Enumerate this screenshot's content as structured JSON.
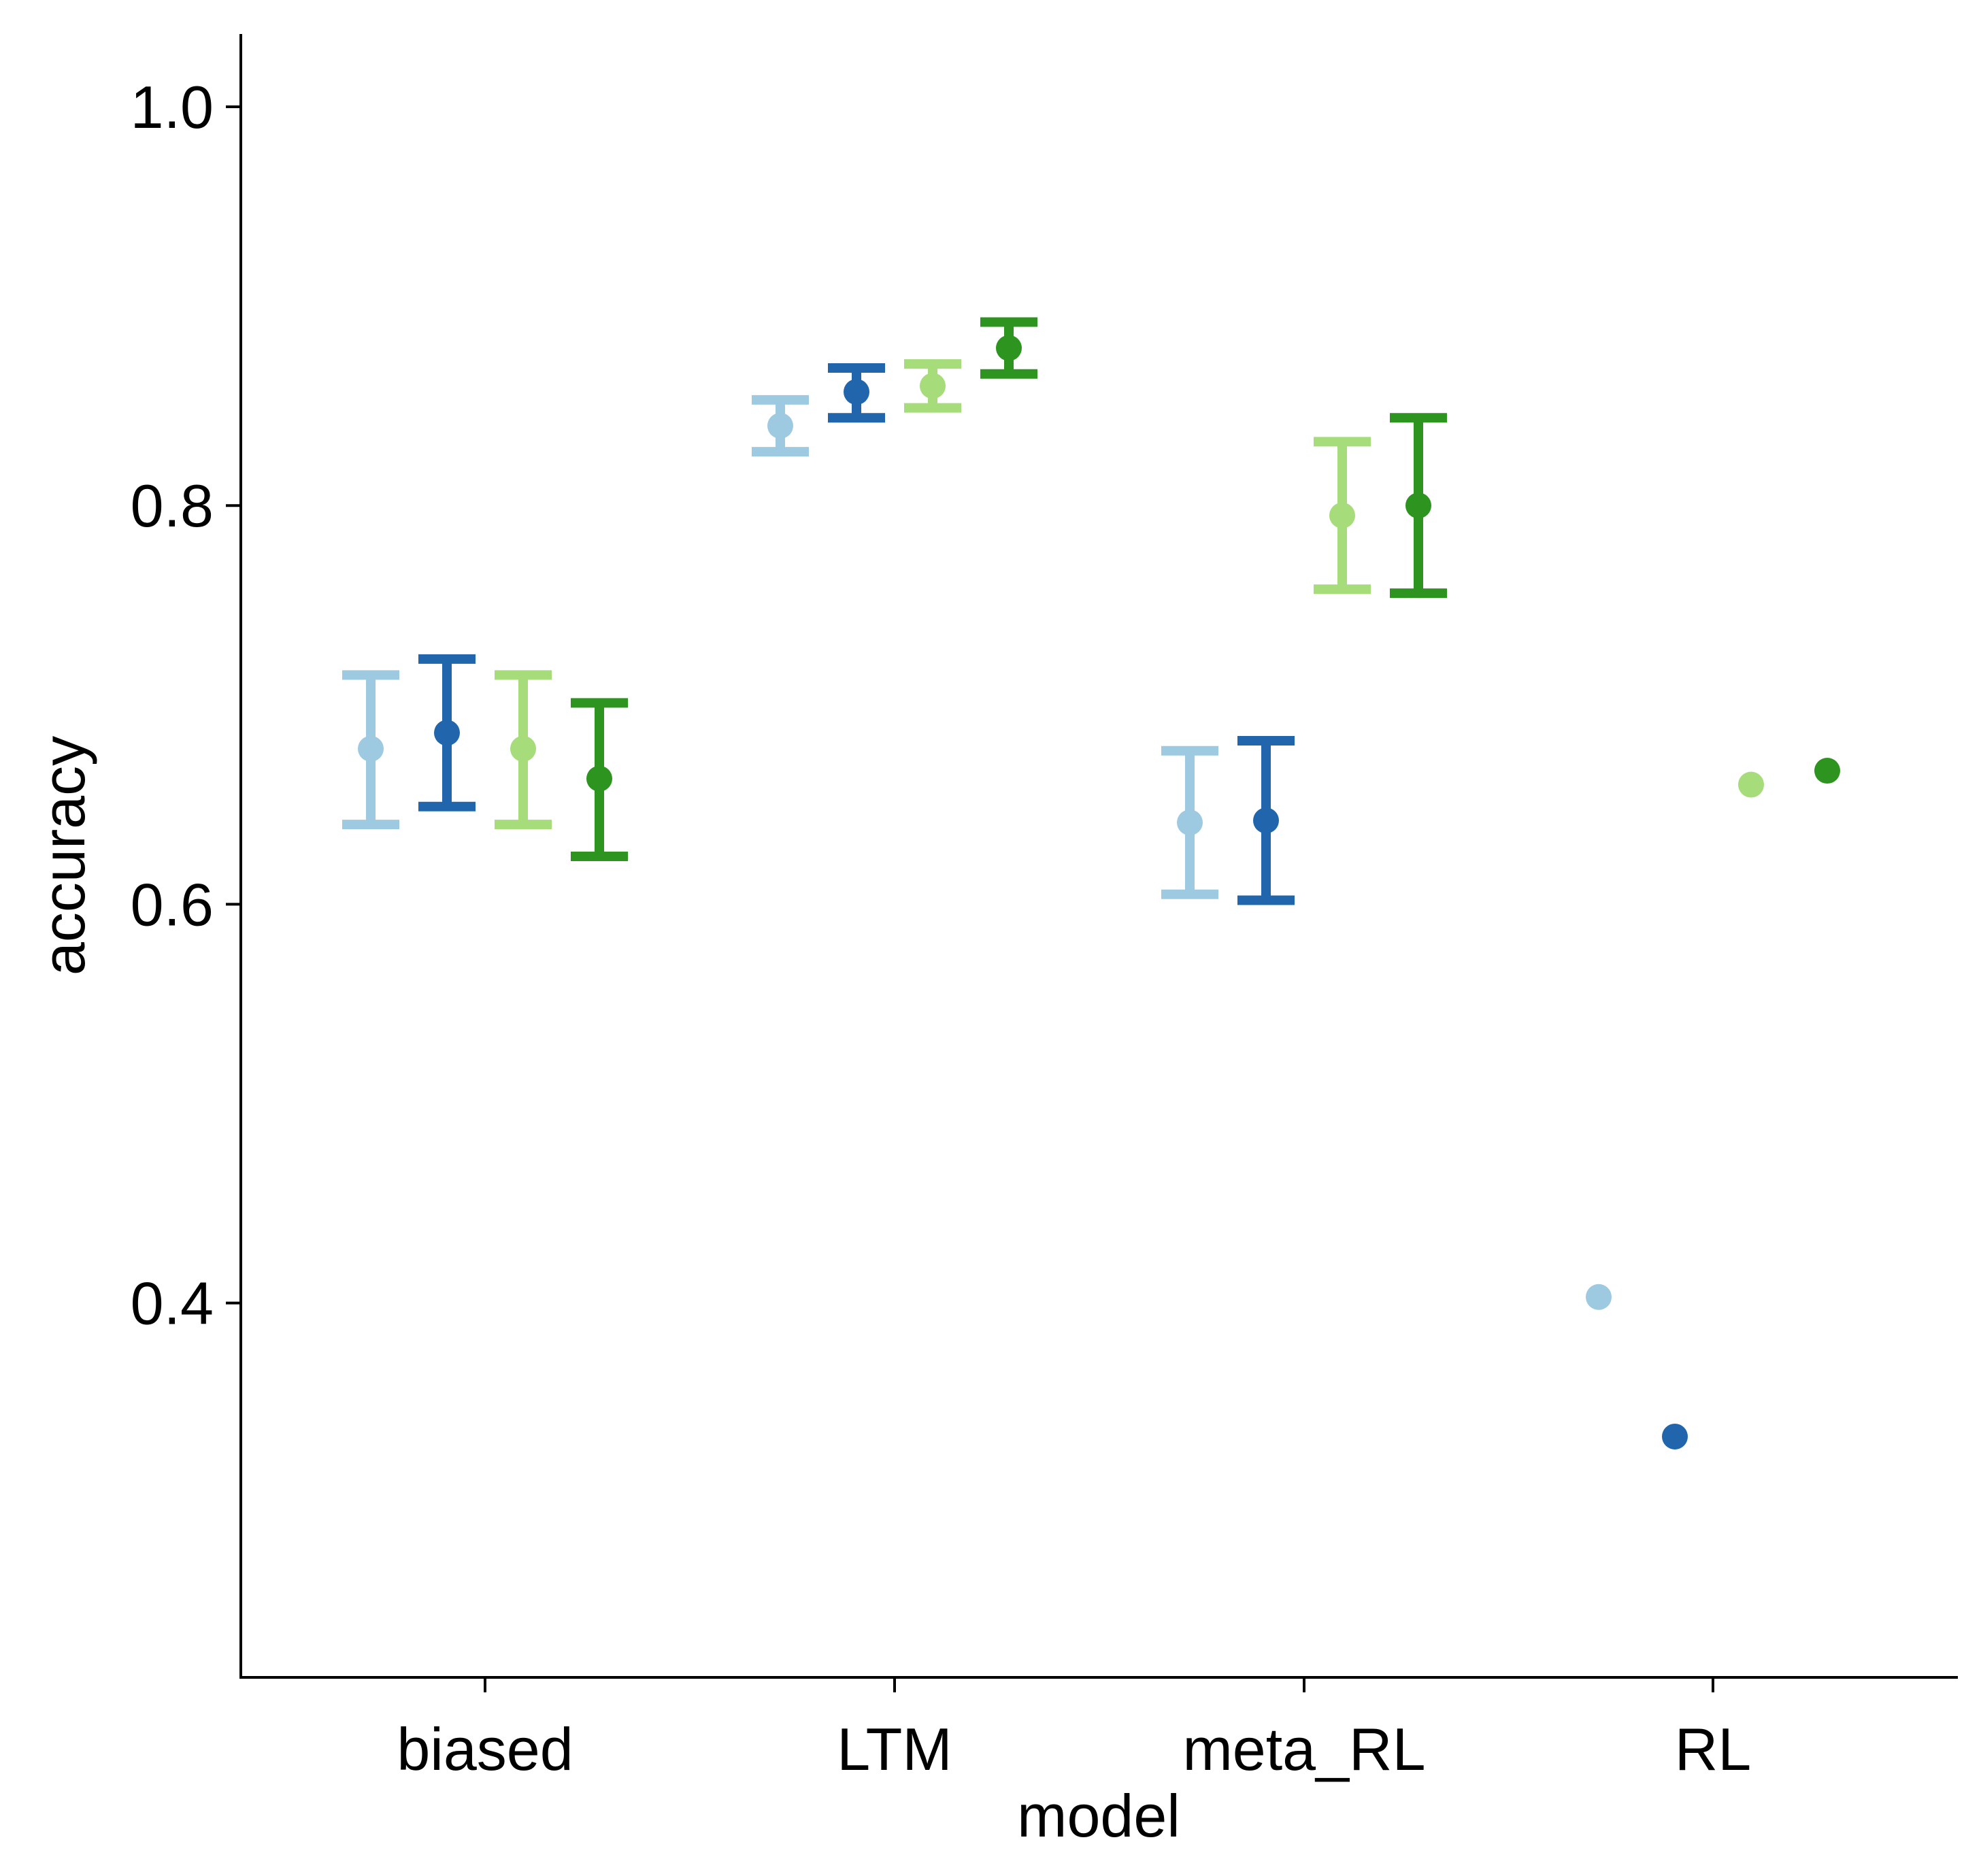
{
  "chart_data": {
    "type": "scatter",
    "subtype": "point-with-error-bars (dodged groups)",
    "xlabel": "model",
    "ylabel": "accuracy",
    "categories": [
      "biased",
      "LTM",
      "meta_RL",
      "RL"
    ],
    "ylim": [
      0.22,
      1.04
    ],
    "yticks": [
      0.4,
      0.6,
      0.8,
      1.0
    ],
    "ytick_labels": [
      "0.4",
      "0.6",
      "0.8",
      "1.0"
    ],
    "grid": false,
    "legend": "none",
    "series": [
      {
        "color": "#9ECAE1",
        "values": [
          0.678,
          0.84,
          0.641,
          0.403
        ],
        "lower": [
          0.64,
          0.827,
          0.605,
          null
        ],
        "upper": [
          0.715,
          0.853,
          0.677,
          null
        ]
      },
      {
        "color": "#2166AC",
        "values": [
          0.686,
          0.857,
          0.642,
          0.333
        ],
        "lower": [
          0.649,
          0.844,
          0.602,
          null
        ],
        "upper": [
          0.723,
          0.869,
          0.682,
          null
        ]
      },
      {
        "color": "#A6DC7A",
        "values": [
          0.678,
          0.86,
          0.795,
          0.66
        ],
        "lower": [
          0.64,
          0.849,
          0.758,
          null
        ],
        "upper": [
          0.715,
          0.871,
          0.832,
          null
        ]
      },
      {
        "color": "#2E9420",
        "values": [
          0.663,
          0.879,
          0.8,
          0.667
        ],
        "lower": [
          0.624,
          0.866,
          0.756,
          null
        ],
        "upper": [
          0.701,
          0.892,
          0.844,
          null
        ]
      }
    ]
  }
}
